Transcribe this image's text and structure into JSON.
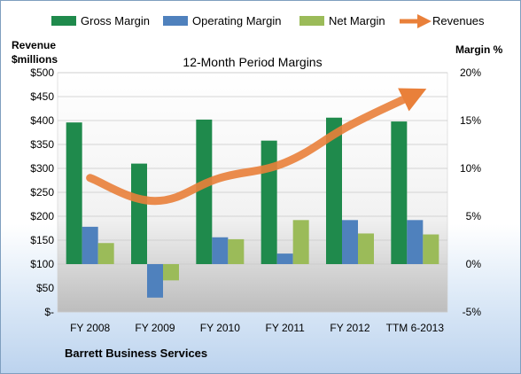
{
  "chart_data": {
    "type": "bar",
    "title": "12-Month Period Margins",
    "company": "Barrett Business Services",
    "categories": [
      "FY 2008",
      "FY 2009",
      "FY 2010",
      "FY 2011",
      "FY 2012",
      "TTM 6-2013"
    ],
    "ylabel_left": [
      "Revenue",
      "$millions"
    ],
    "ylabel_right": "Margin %",
    "left_ticks": [
      "$-",
      "$50",
      "$100",
      "$150",
      "$200",
      "$250",
      "$300",
      "$350",
      "$400",
      "$450",
      "$500"
    ],
    "right_ticks": [
      "-5%",
      "0%",
      "5%",
      "10%",
      "15%",
      "20%"
    ],
    "ylim_left": [
      0,
      500
    ],
    "ylim_right": [
      -5,
      20
    ],
    "legend_position": "top",
    "series": [
      {
        "name": "Gross Margin",
        "axis": "right",
        "kind": "bar",
        "color": "#1f8a4c",
        "values": [
          14.8,
          10.5,
          15.1,
          12.9,
          15.3,
          14.9
        ]
      },
      {
        "name": "Operating Margin",
        "axis": "right",
        "kind": "bar",
        "color": "#4f81bd",
        "values": [
          3.9,
          -3.5,
          2.8,
          1.1,
          4.6,
          4.6
        ]
      },
      {
        "name": "Net Margin",
        "axis": "right",
        "kind": "bar",
        "color": "#9bbb59",
        "values": [
          2.2,
          -1.7,
          2.6,
          4.6,
          3.2,
          3.1
        ]
      },
      {
        "name": "Revenues",
        "axis": "left",
        "kind": "line",
        "color": "#e9803a",
        "values": [
          280,
          232,
          280,
          312,
          390,
          455
        ]
      }
    ]
  }
}
